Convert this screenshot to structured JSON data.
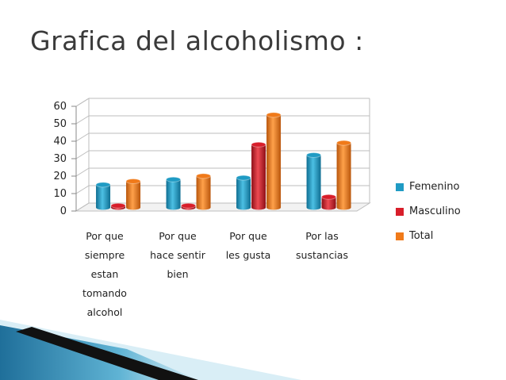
{
  "slide": {
    "title": "Grafica del alcoholismo :"
  },
  "chart_data": {
    "type": "bar",
    "categories": [
      "Por que\nsiempre\nestan\ntomando\nalcohol",
      "Por que\nhace sentir\nbien",
      "Por que\nles gusta",
      "Por las\nsustancias"
    ],
    "series": [
      {
        "name": "Femenino",
        "values": [
          13,
          16,
          17,
          30
        ],
        "color": "#1f9bc4"
      },
      {
        "name": "Masculino",
        "values": [
          1,
          1,
          36,
          6
        ],
        "color": "#d81e2a"
      },
      {
        "name": "Total",
        "values": [
          15,
          18,
          53,
          37
        ],
        "color": "#f07a1a"
      }
    ],
    "ylim": [
      0,
      60
    ],
    "yticks": [
      "0",
      "10",
      "20",
      "30",
      "40",
      "50",
      "60"
    ],
    "grid": true,
    "legend_position": "right",
    "style": "3d-cylinder"
  },
  "colors": {
    "footer_blue": "#1f6f9a",
    "footer_light": "#d9eef6"
  }
}
